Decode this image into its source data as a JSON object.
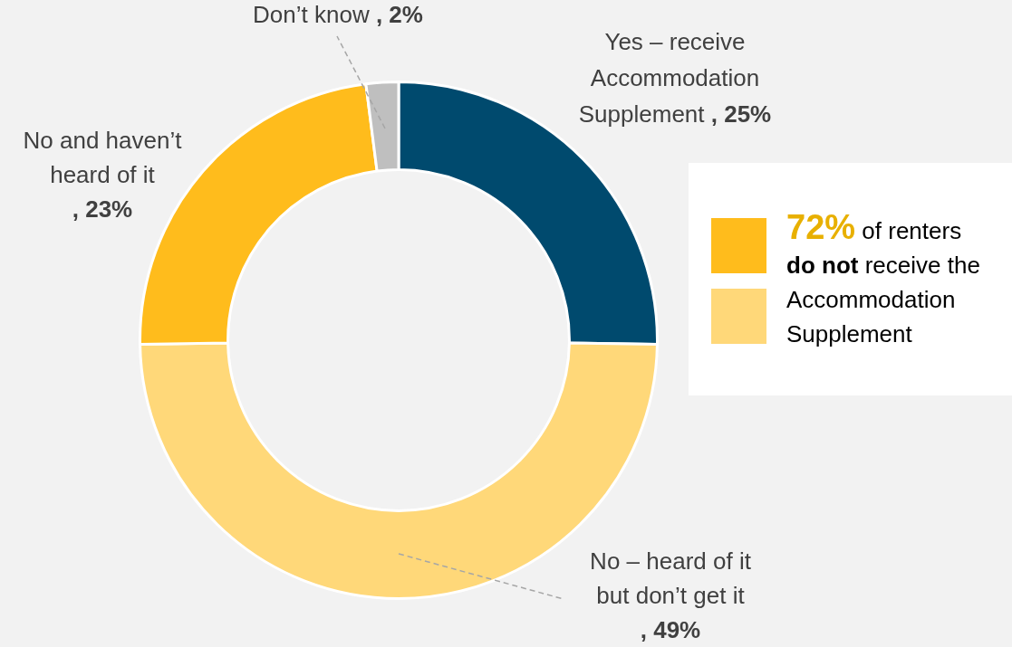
{
  "chart_data": {
    "type": "donut",
    "categories": [
      "Yes – receive Accommodation Supplement",
      "No – heard of it but don’t get it",
      "No and haven’t heard of it",
      "Don’t know"
    ],
    "values": [
      25,
      49,
      23,
      2
    ],
    "colors": [
      "#004a6e",
      "#ffd879",
      "#ffbc1c",
      "#bfbfbf"
    ],
    "value_labels": [
      ", 25%",
      ", 49%",
      ", 23%",
      ", 2%"
    ],
    "legend": false,
    "annotations": [
      "72% of renters do not receive the Accommodation Supplement"
    ]
  }
}
